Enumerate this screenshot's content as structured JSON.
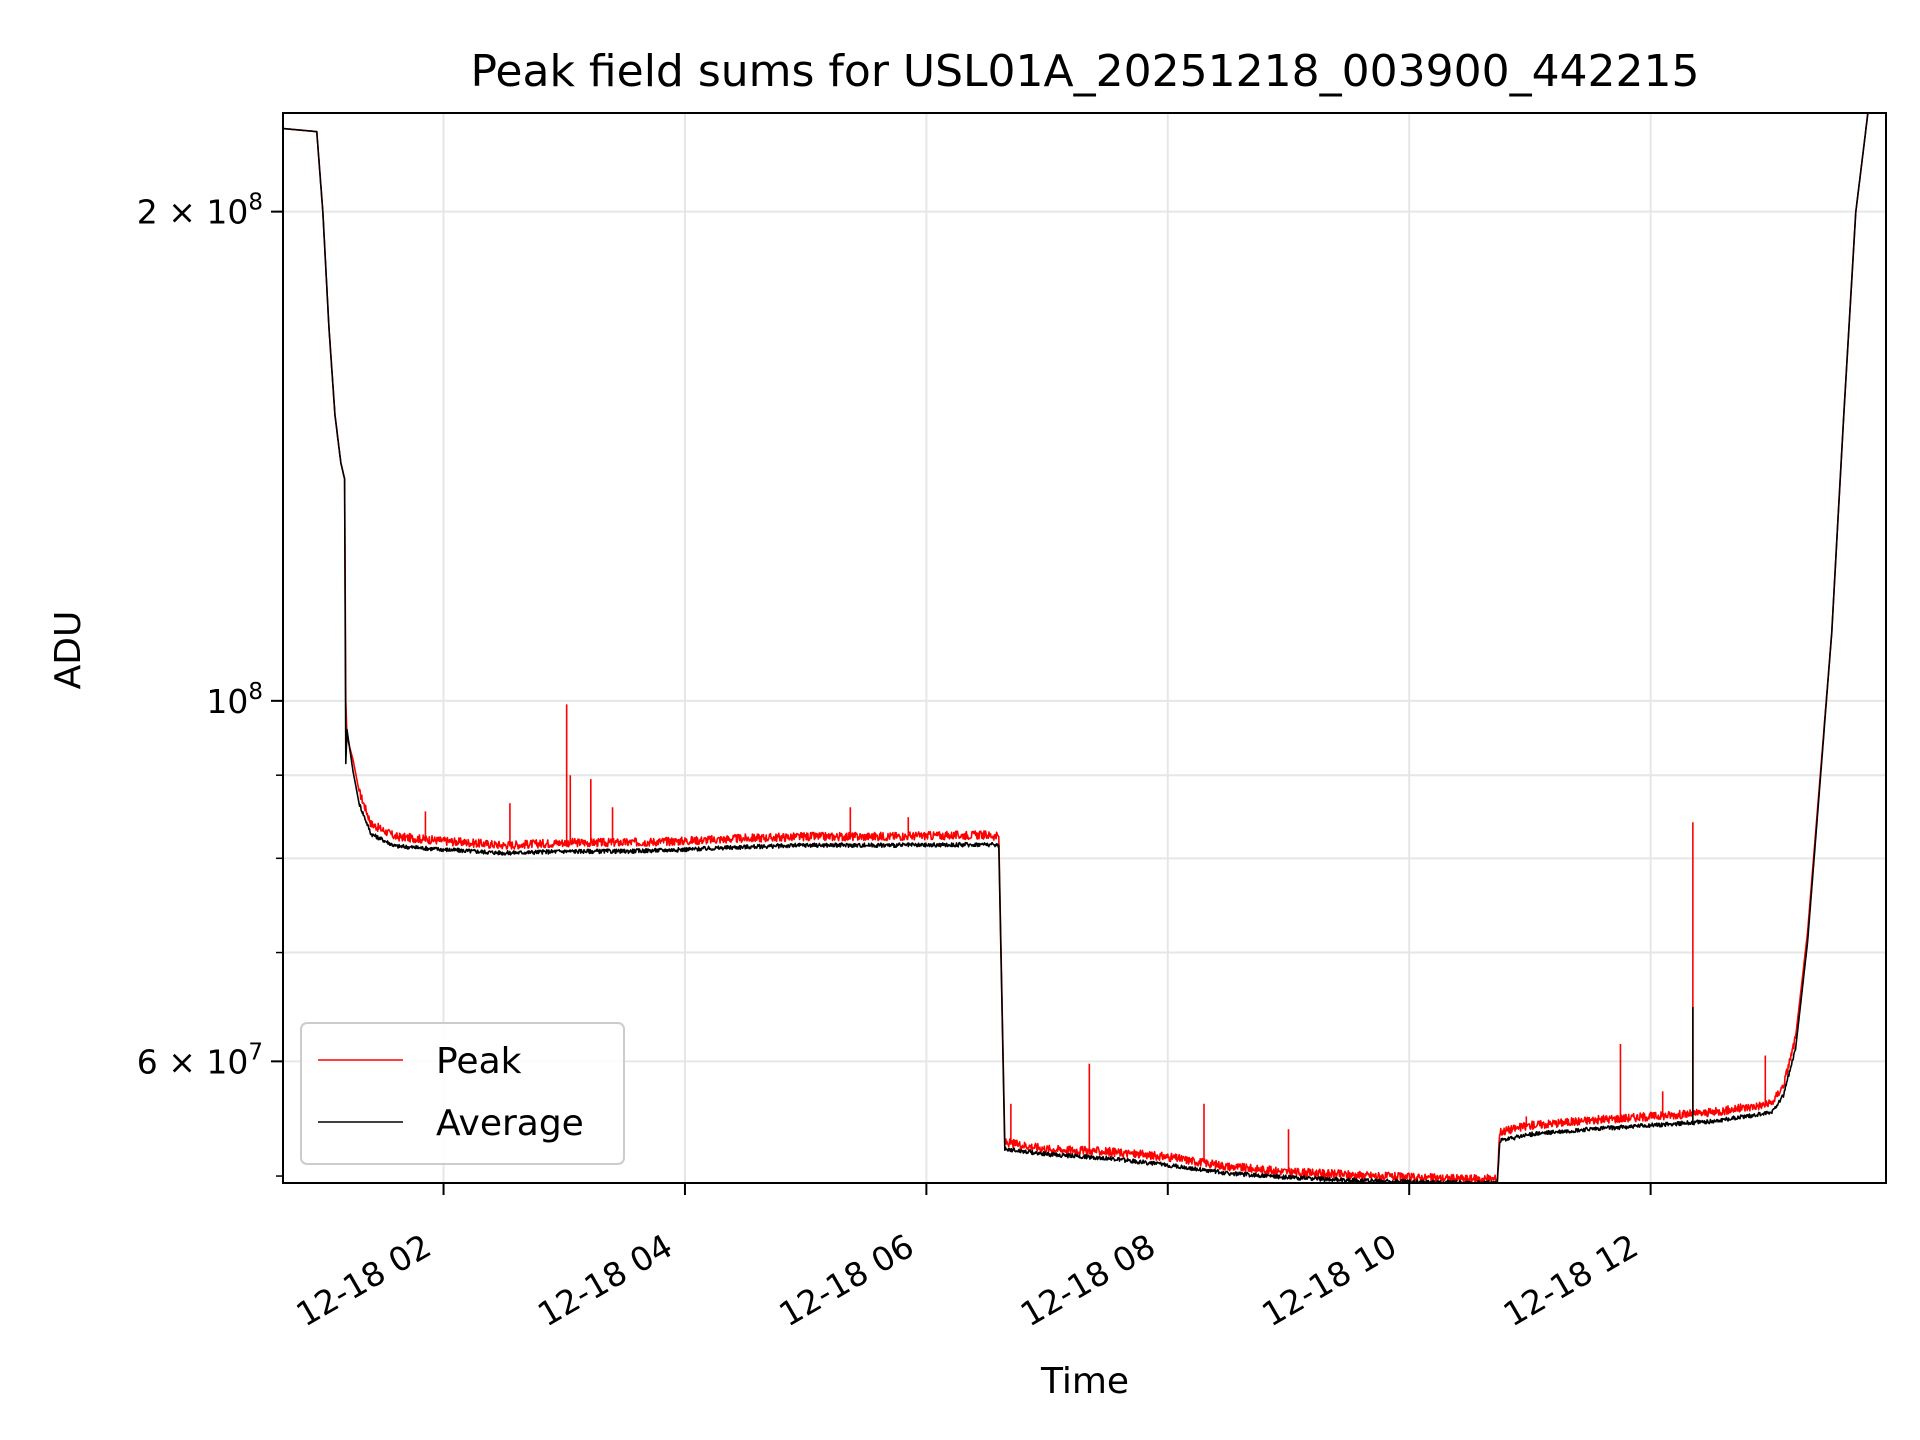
{
  "chart_data": {
    "type": "line",
    "title": "Peak field sums for USL01A_20251218_003900_442215",
    "xlabel": "Time",
    "ylabel": "ADU",
    "yscale": "log",
    "xlim": [
      0.67,
      13.95
    ],
    "ylim": [
      50500000,
      230000000
    ],
    "grid": true,
    "x_ticks": [
      {
        "value": 2,
        "label": "12-18 02"
      },
      {
        "value": 4,
        "label": "12-18 04"
      },
      {
        "value": 6,
        "label": "12-18 06"
      },
      {
        "value": 8,
        "label": "12-18 08"
      },
      {
        "value": 10,
        "label": "12-18 10"
      },
      {
        "value": 12,
        "label": "12-18 12"
      }
    ],
    "y_major_ticks": [
      {
        "value": 200000000,
        "base": "2 × 10",
        "exp": "8"
      },
      {
        "value": 100000000,
        "base": "10",
        "exp": "8"
      },
      {
        "value": 60000000,
        "base": "6 × 10",
        "exp": "7"
      }
    ],
    "y_minor_ticks": [
      200000000,
      100000000,
      90000000,
      80000000,
      70000000,
      60000000
    ],
    "legend_position": "lower-left",
    "series": [
      {
        "name": "Peak",
        "color": "#ff0000",
        "x": [
          0.67,
          0.95,
          1.0,
          1.05,
          1.1,
          1.15,
          1.18,
          1.19,
          1.2,
          1.25,
          1.3,
          1.4,
          1.6,
          2.0,
          2.5,
          3.0,
          3.5,
          4.0,
          4.5,
          5.0,
          5.5,
          6.0,
          6.5,
          6.6,
          6.65,
          7.0,
          7.5,
          8.0,
          8.5,
          9.0,
          9.5,
          10.0,
          10.5,
          10.73,
          10.75,
          11.0,
          11.5,
          12.0,
          12.5,
          13.0,
          13.1,
          13.2,
          13.3,
          13.5,
          13.6,
          13.7,
          13.8,
          13.95
        ],
        "y": [
          225000000,
          224000000,
          200000000,
          170000000,
          150000000,
          140000000,
          137000000,
          100000000,
          95000000,
          92000000,
          88000000,
          84000000,
          82500000,
          82000000,
          81500000,
          81800000,
          81800000,
          82000000,
          82300000,
          82500000,
          82500000,
          82600000,
          82700000,
          82500000,
          53500000,
          53000000,
          52800000,
          52400000,
          51700000,
          51300000,
          51100000,
          50900000,
          50800000,
          50800000,
          54300000,
          54800000,
          55200000,
          55500000,
          55800000,
          56500000,
          58000000,
          62000000,
          72000000,
          110000000,
          150000000,
          200000000,
          230000000,
          230000000
        ],
        "spikes": [
          {
            "x": 3.02,
            "y": 99500000
          },
          {
            "x": 3.05,
            "y": 90000000
          },
          {
            "x": 3.22,
            "y": 89500000
          },
          {
            "x": 3.4,
            "y": 86000000
          },
          {
            "x": 2.55,
            "y": 86500000
          },
          {
            "x": 1.85,
            "y": 85500000
          },
          {
            "x": 5.37,
            "y": 86000000
          },
          {
            "x": 5.85,
            "y": 84800000
          },
          {
            "x": 6.7,
            "y": 56500000
          },
          {
            "x": 7.35,
            "y": 59800000
          },
          {
            "x": 8.3,
            "y": 56500000
          },
          {
            "x": 9.0,
            "y": 54500000
          },
          {
            "x": 10.97,
            "y": 55500000
          },
          {
            "x": 11.75,
            "y": 61500000
          },
          {
            "x": 12.1,
            "y": 57500000
          },
          {
            "x": 12.35,
            "y": 84200000
          },
          {
            "x": 12.95,
            "y": 60500000
          }
        ]
      },
      {
        "name": "Average",
        "color": "#000000",
        "x": [
          0.67,
          0.95,
          1.0,
          1.05,
          1.1,
          1.15,
          1.18,
          1.19,
          1.2,
          1.25,
          1.3,
          1.4,
          1.6,
          2.0,
          2.5,
          3.0,
          3.5,
          4.0,
          4.5,
          5.0,
          5.5,
          6.0,
          6.5,
          6.6,
          6.65,
          7.0,
          7.5,
          8.0,
          8.5,
          9.0,
          9.5,
          10.0,
          10.5,
          10.73,
          10.75,
          11.0,
          11.5,
          12.0,
          12.5,
          13.0,
          13.1,
          13.2,
          13.3,
          13.5,
          13.6,
          13.7,
          13.8,
          13.95
        ],
        "y": [
          225000000,
          224000000,
          200000000,
          170000000,
          150000000,
          140000000,
          137000000,
          91500000,
          96000000,
          90500000,
          86500000,
          82800000,
          81400000,
          81000000,
          80600000,
          80800000,
          80800000,
          81000000,
          81300000,
          81500000,
          81500000,
          81500000,
          81600000,
          81500000,
          53000000,
          52600000,
          52300000,
          51800000,
          51200000,
          50900000,
          50700000,
          50600000,
          50500000,
          50500000,
          53600000,
          54100000,
          54500000,
          54800000,
          55100000,
          55800000,
          57200000,
          61000000,
          71000000,
          110000000,
          150000000,
          200000000,
          230000000,
          230000000
        ],
        "spikes": [
          {
            "x": 12.35,
            "y": 64800000
          }
        ]
      }
    ]
  }
}
